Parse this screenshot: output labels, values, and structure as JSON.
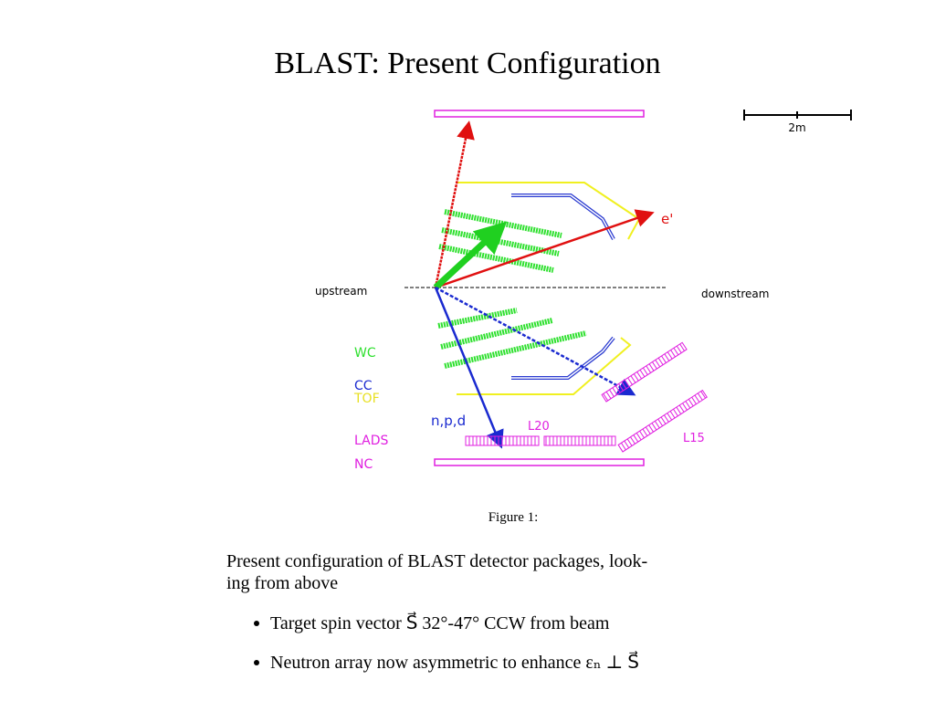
{
  "header": {
    "title": "BLAST: Present Configuration"
  },
  "diagram": {
    "scale": "2m",
    "upstream": "upstream",
    "downstream": "downstream",
    "electron": "e'",
    "legend": {
      "wc": "WC",
      "cc": "CC",
      "tof": "TOF",
      "lads": "LADS",
      "nc": "NC"
    },
    "hadrons": "n,p,d",
    "l20": "L20",
    "l15": "L15"
  },
  "figure": {
    "label": "Figure 1:",
    "caption": [
      "Present configuration of BLAST detector packages, look-",
      "ing from above"
    ],
    "bullets": [
      "Target spin vector S⃗ 32°-47° CCW from beam",
      "Neutron array now asymmetric to enhance εₙ ⊥ S⃗"
    ]
  }
}
